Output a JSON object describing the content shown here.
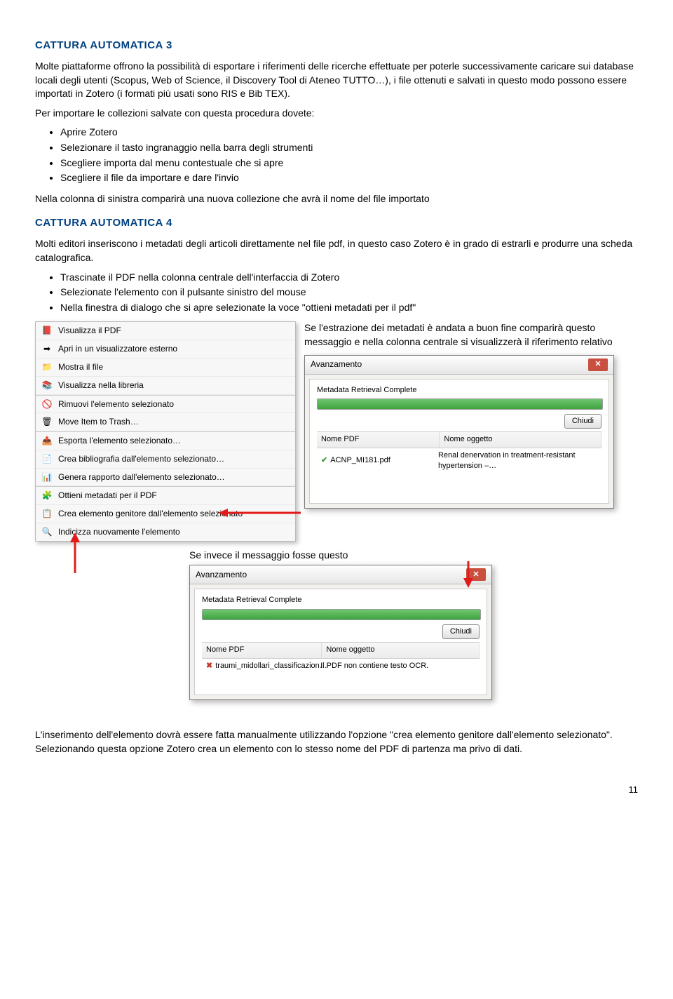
{
  "heading1": "CATTURA AUTOMATICA 3",
  "para1": "Molte piattaforme offrono la possibilità di esportare i riferimenti delle ricerche effettuate per poterle successivamente caricare sui database locali degli utenti (Scopus, Web of Science, il Discovery Tool di Ateneo TUTTO…), i file ottenuti e salvati in questo modo possono essere importati in Zotero (i formati più usati sono RIS e Bib TEX).",
  "para2": "Per importare le collezioni salvate con questa procedura dovete:",
  "list1": [
    "Aprire Zotero",
    "Selezionare il tasto ingranaggio nella barra degli strumenti",
    "Scegliere importa dal menu contestuale che si apre",
    "Scegliere il file da importare e dare l'invio"
  ],
  "para3": "Nella colonna di sinistra comparirà una nuova collezione che avrà il nome del file importato",
  "heading2": "CATTURA AUTOMATICA 4",
  "para4": "Molti editori inseriscono i metadati degli articoli direttamente nel file pdf, in questo caso Zotero è in grado di estrarli e produrre una scheda catalografica.",
  "list2": [
    "Trascinate il PDF nella colonna centrale dell'interfaccia di Zotero",
    "Selezionate l'elemento con il pulsante sinistro del mouse",
    "Nella finestra di dialogo che si apre selezionate la voce \"ottieni metadati per il pdf\""
  ],
  "para5": "Se l'estrazione dei metadati è andata a buon fine comparirà questo messaggio e nella colonna centrale si visualizzerà il riferimento relativo",
  "contextMenu": [
    {
      "icon": "pdf",
      "label": "Visualizza il PDF"
    },
    {
      "icon": "ext",
      "label": "Apri in un visualizzatore esterno"
    },
    {
      "icon": "folder",
      "label": "Mostra il file"
    },
    {
      "icon": "lib",
      "label": "Visualizza nella libreria"
    },
    {
      "icon": "del",
      "label": "Rimuovi l'elemento selezionato",
      "sep": true
    },
    {
      "icon": "trash",
      "label": "Move Item to Trash…"
    },
    {
      "icon": "export",
      "label": "Esporta l'elemento selezionato…",
      "sep": true
    },
    {
      "icon": "biblio",
      "label": "Crea bibliografia dall'elemento selezionato…"
    },
    {
      "icon": "report",
      "label": "Genera rapporto dall'elemento selezionato…"
    },
    {
      "icon": "meta",
      "label": "Ottieni metadati per il PDF",
      "sep": true
    },
    {
      "icon": "parent",
      "label": "Crea elemento genitore dall'elemento selezionato"
    },
    {
      "icon": "index",
      "label": "Indicizza nuovamente l'elemento"
    }
  ],
  "dialog1": {
    "title": "Avanzamento",
    "status": "Metadata Retrieval Complete",
    "closeBtn": "Chiudi",
    "col1": "Nome PDF",
    "col2": "Nome oggetto",
    "rowIcon": "ok",
    "rowPdf": "ACNP_MI181.pdf",
    "rowObj": "Renal denervation in treatment-resistant hypertension –…"
  },
  "para6": "Se invece il messaggio fosse questo",
  "dialog2": {
    "title": "Avanzamento",
    "status": "Metadata Retrieval Complete",
    "closeBtn": "Chiudi",
    "col1": "Nome PDF",
    "col2": "Nome oggetto",
    "rowIcon": "fail",
    "rowPdf": "traumi_midollari_classificazion…",
    "rowObj": "Il PDF non contiene testo OCR."
  },
  "para7": "L'inserimento dell'elemento dovrà essere fatta manualmente utilizzando l'opzione \"crea elemento genitore dall'elemento selezionato\". Selezionando questa opzione Zotero crea un elemento con lo stesso nome del PDF di partenza ma privo di dati.",
  "pageNumber": "11",
  "iconGlyphs": {
    "pdf": "📕",
    "ext": "➡",
    "folder": "📁",
    "lib": "📚",
    "del": "🚫",
    "trash": "🗑",
    "export": "📤",
    "biblio": "📄",
    "report": "📊",
    "meta": "🧩",
    "parent": "📋",
    "index": "🔍"
  },
  "colors": {
    "heading": "#004080",
    "arrow": "#e11b1b"
  }
}
